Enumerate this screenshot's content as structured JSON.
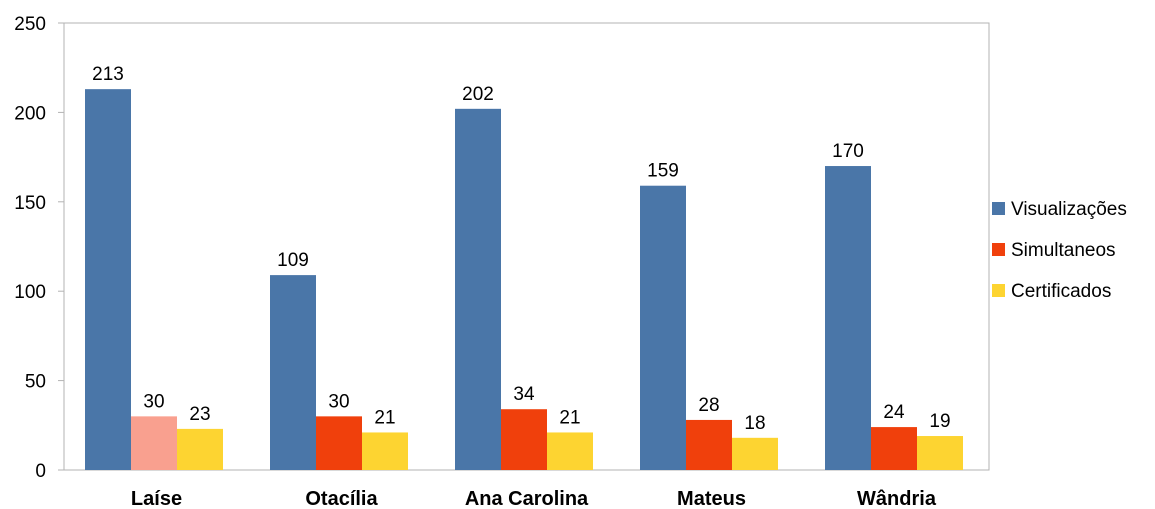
{
  "chart_data": {
    "type": "bar",
    "title": "",
    "xlabel": "",
    "ylabel": "",
    "ylim": [
      0,
      250
    ],
    "yticks": [
      0,
      50,
      100,
      150,
      200,
      250
    ],
    "grid": false,
    "legend_position": "right",
    "categories": [
      "Laíse",
      "Otacília",
      "Ana Carolina",
      "Mateus",
      "Wândria"
    ],
    "series": [
      {
        "name": "Visualizações",
        "color": "#4a76a8",
        "values": [
          213,
          109,
          202,
          159,
          170
        ]
      },
      {
        "name": "Simultaneos",
        "color": "#f0400c",
        "values": [
          30,
          30,
          34,
          28,
          24
        ]
      },
      {
        "name": "Certificados",
        "color": "#fdd431",
        "values": [
          23,
          21,
          21,
          18,
          19
        ]
      }
    ],
    "highlight": {
      "series": 1,
      "category": 0,
      "color": "#f9a08f"
    }
  }
}
